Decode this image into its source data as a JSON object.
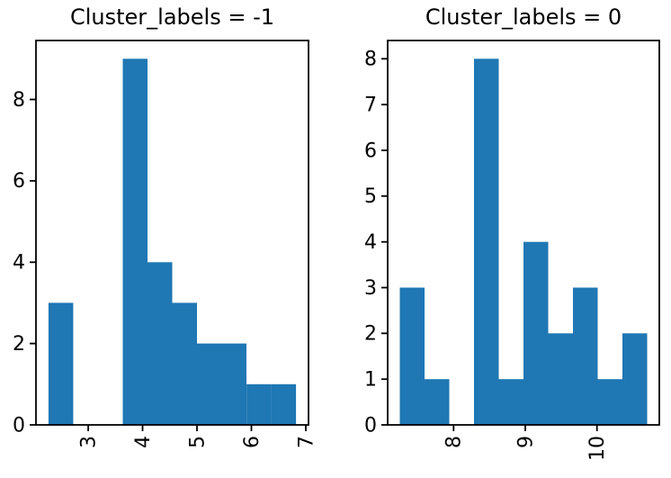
{
  "figure": {
    "background": "#ffffff",
    "bar_color": "#1f77b4",
    "spine_color": "#000000",
    "text_color": "#000000"
  },
  "chart_data": [
    {
      "type": "bar",
      "subtype": "histogram",
      "title": "Cluster_labels = -1",
      "bin_start": 2.27,
      "bin_width": 0.455,
      "counts": [
        3,
        0,
        0,
        9,
        4,
        3,
        2,
        2,
        1,
        1
      ],
      "xticks": [
        3,
        4,
        5,
        6,
        7
      ],
      "yticks": [
        0,
        2,
        4,
        6,
        8
      ],
      "xlim": [
        2.04,
        7.05
      ],
      "ylim": [
        0,
        9.45
      ],
      "xtick_rotation": 90,
      "grid": false,
      "legend": null
    },
    {
      "type": "bar",
      "subtype": "histogram",
      "title": "Cluster_labels = 0",
      "bin_start": 7.25,
      "bin_width": 0.345,
      "counts": [
        3,
        1,
        0,
        8,
        1,
        4,
        2,
        3,
        1,
        2
      ],
      "xticks": [
        8,
        9,
        10
      ],
      "yticks": [
        0,
        1,
        2,
        3,
        4,
        5,
        6,
        7,
        8
      ],
      "xlim": [
        7.08,
        10.87
      ],
      "ylim": [
        0,
        8.4
      ],
      "xtick_rotation": 90,
      "grid": false,
      "legend": null
    }
  ]
}
